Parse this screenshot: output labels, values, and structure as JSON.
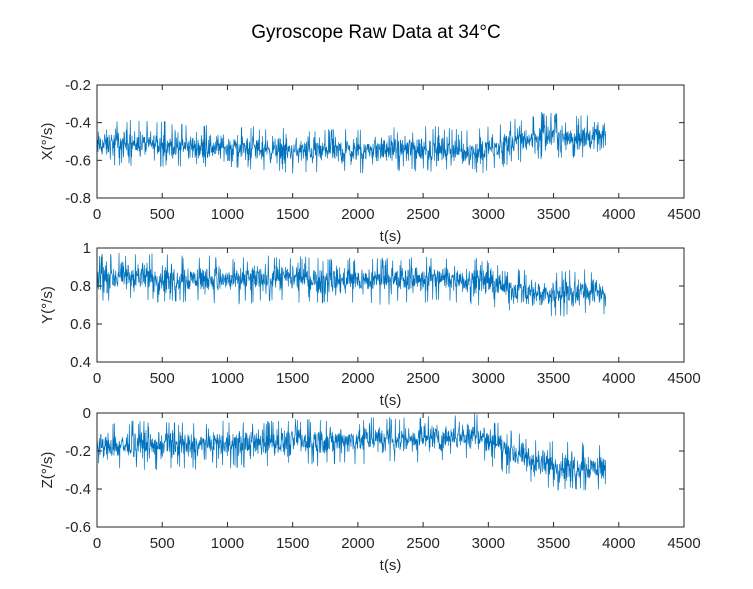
{
  "figure": {
    "title": "Gyroscope Raw Data at 34°C"
  },
  "colors": {
    "series": "#0072bd",
    "axes": "#262626",
    "background": "#ffffff"
  },
  "chart_data": [
    {
      "type": "line",
      "xlabel": "t(s)",
      "ylabel": "X(°/s)",
      "xlim": [
        0,
        4500
      ],
      "ylim": [
        -0.8,
        -0.2
      ],
      "xticks": [
        0,
        500,
        1000,
        1500,
        2000,
        2500,
        3000,
        3500,
        4000,
        4500
      ],
      "xtick_labels": [
        "0",
        "500",
        "1000",
        "1500",
        "2000",
        "2500",
        "3000",
        "3500",
        "4000",
        "4500"
      ],
      "yticks": [
        -0.8,
        -0.6,
        -0.4,
        -0.2
      ],
      "ytick_labels": [
        "-0.8",
        "-0.6",
        "-0.4",
        "-0.2"
      ],
      "grid": false,
      "series": [
        {
          "x": [
            0,
            250,
            500,
            750,
            1000,
            1250,
            1500,
            1750,
            2000,
            2250,
            2500,
            2750,
            2900,
            3000,
            3100,
            3250,
            3400,
            3550,
            3700,
            3900
          ],
          "mean": [
            -0.52,
            -0.51,
            -0.52,
            -0.53,
            -0.53,
            -0.54,
            -0.55,
            -0.55,
            -0.55,
            -0.54,
            -0.54,
            -0.55,
            -0.56,
            -0.54,
            -0.52,
            -0.49,
            -0.48,
            -0.47,
            -0.48,
            -0.48
          ],
          "band_min": [
            -0.64,
            -0.63,
            -0.64,
            -0.65,
            -0.65,
            -0.66,
            -0.67,
            -0.67,
            -0.67,
            -0.66,
            -0.66,
            -0.67,
            -0.68,
            -0.66,
            -0.64,
            -0.61,
            -0.6,
            -0.59,
            -0.6,
            -0.6
          ],
          "band_max": [
            -0.38,
            -0.38,
            -0.39,
            -0.4,
            -0.41,
            -0.42,
            -0.43,
            -0.43,
            -0.42,
            -0.42,
            -0.41,
            -0.43,
            -0.43,
            -0.42,
            -0.4,
            -0.37,
            -0.34,
            -0.35,
            -0.36,
            -0.35
          ]
        }
      ]
    },
    {
      "type": "line",
      "xlabel": "t(s)",
      "ylabel": "Y(°/s)",
      "xlim": [
        0,
        4500
      ],
      "ylim": [
        0.4,
        1
      ],
      "xticks": [
        0,
        500,
        1000,
        1500,
        2000,
        2500,
        3000,
        3500,
        4000,
        4500
      ],
      "xtick_labels": [
        "0",
        "500",
        "1000",
        "1500",
        "2000",
        "2500",
        "3000",
        "3500",
        "4000",
        "4500"
      ],
      "yticks": [
        0.4,
        0.6,
        0.8,
        1
      ],
      "ytick_labels": [
        "0.4",
        "0.6",
        "0.8",
        "1"
      ],
      "grid": false,
      "series": [
        {
          "x": [
            0,
            250,
            500,
            750,
            1000,
            1250,
            1500,
            1750,
            2000,
            2250,
            2500,
            2750,
            2900,
            3000,
            3100,
            3250,
            3400,
            3550,
            3700,
            3900
          ],
          "mean": [
            0.84,
            0.85,
            0.84,
            0.84,
            0.83,
            0.84,
            0.84,
            0.83,
            0.83,
            0.83,
            0.84,
            0.84,
            0.83,
            0.82,
            0.8,
            0.77,
            0.76,
            0.76,
            0.77,
            0.77
          ],
          "band_min": [
            0.71,
            0.72,
            0.71,
            0.71,
            0.7,
            0.71,
            0.71,
            0.7,
            0.7,
            0.7,
            0.71,
            0.71,
            0.7,
            0.69,
            0.67,
            0.64,
            0.63,
            0.63,
            0.64,
            0.65
          ],
          "band_max": [
            0.97,
            0.98,
            0.97,
            0.96,
            0.96,
            0.96,
            0.96,
            0.95,
            0.95,
            0.95,
            0.96,
            0.96,
            0.95,
            0.94,
            0.92,
            0.89,
            0.88,
            0.88,
            0.89,
            0.88
          ]
        }
      ]
    },
    {
      "type": "line",
      "xlabel": "t(s)",
      "ylabel": "Z(°/s)",
      "xlim": [
        0,
        4500
      ],
      "ylim": [
        -0.6,
        0
      ],
      "xticks": [
        0,
        500,
        1000,
        1500,
        2000,
        2500,
        3000,
        3500,
        4000,
        4500
      ],
      "xtick_labels": [
        "0",
        "500",
        "1000",
        "1500",
        "2000",
        "2500",
        "3000",
        "3500",
        "4000",
        "4500"
      ],
      "yticks": [
        -0.6,
        -0.4,
        -0.2,
        0
      ],
      "ytick_labels": [
        "-0.6",
        "-0.4",
        "-0.2",
        "0"
      ],
      "grid": false,
      "series": [
        {
          "x": [
            0,
            250,
            500,
            750,
            1000,
            1250,
            1500,
            1750,
            2000,
            2250,
            2500,
            2750,
            2900,
            3000,
            3100,
            3250,
            3400,
            3550,
            3700,
            3900
          ],
          "mean": [
            -0.18,
            -0.17,
            -0.17,
            -0.17,
            -0.16,
            -0.16,
            -0.15,
            -0.15,
            -0.14,
            -0.14,
            -0.13,
            -0.12,
            -0.11,
            -0.14,
            -0.18,
            -0.23,
            -0.27,
            -0.28,
            -0.28,
            -0.29
          ],
          "band_min": [
            -0.31,
            -0.3,
            -0.3,
            -0.3,
            -0.29,
            -0.29,
            -0.28,
            -0.28,
            -0.27,
            -0.27,
            -0.26,
            -0.25,
            -0.24,
            -0.27,
            -0.31,
            -0.36,
            -0.4,
            -0.41,
            -0.41,
            -0.42
          ],
          "band_max": [
            -0.05,
            -0.04,
            -0.04,
            -0.05,
            -0.04,
            -0.04,
            -0.03,
            -0.03,
            -0.02,
            -0.02,
            -0.01,
            0.0,
            0.0,
            -0.02,
            -0.06,
            -0.11,
            -0.14,
            -0.15,
            -0.15,
            -0.16
          ]
        }
      ]
    }
  ]
}
